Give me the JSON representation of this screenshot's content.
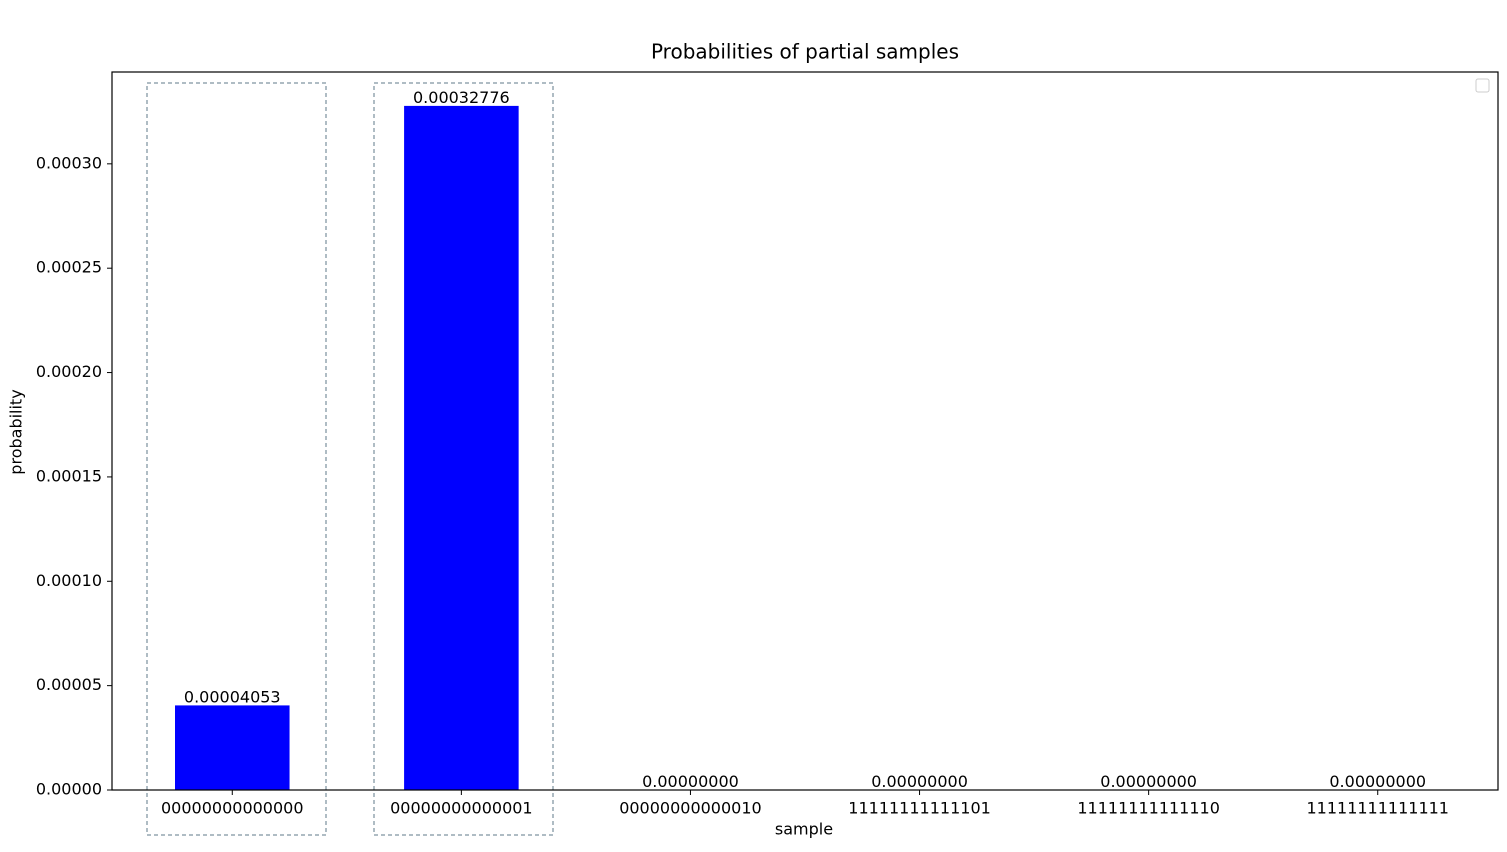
{
  "chart_data": {
    "type": "bar",
    "title": "Probabilities of partial samples",
    "x_label": "sample",
    "y_label": "probability",
    "categories": [
      "00000000000000",
      "00000000000001",
      "00000000000010",
      "11111111111101",
      "11111111111110",
      "11111111111111"
    ],
    "values": [
      4.053e-05,
      0.00032776,
      0,
      0,
      0,
      0
    ],
    "value_labels": [
      "0.00004053",
      "0.00032776",
      "0.00000000",
      "0.00000000",
      "0.00000000",
      "0.00000000"
    ],
    "color": "#0000ff",
    "ylim": [
      0,
      0.000344
    ],
    "yticks": [
      {
        "value": 0,
        "label": "0.00000"
      },
      {
        "value": 5e-05,
        "label": "0.00005"
      },
      {
        "value": 0.0001,
        "label": "0.00010"
      },
      {
        "value": 0.00015,
        "label": "0.00015"
      },
      {
        "value": 0.0002,
        "label": "0.00020"
      },
      {
        "value": 0.00025,
        "label": "0.00025"
      },
      {
        "value": 0.0003,
        "label": "0.00030"
      }
    ],
    "grid": false
  }
}
